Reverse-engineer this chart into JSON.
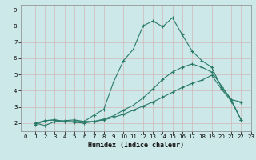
{
  "xlabel": "Humidex (Indice chaleur)",
  "ylabel": "",
  "background_color": "#cde8e8",
  "grid_color": "#b8d0d0",
  "line_color": "#2a7a6a",
  "xlim": [
    -0.5,
    23
  ],
  "ylim": [
    1.5,
    9.3
  ],
  "xticks": [
    0,
    1,
    2,
    3,
    4,
    5,
    6,
    7,
    8,
    9,
    10,
    11,
    12,
    13,
    14,
    15,
    16,
    17,
    18,
    19,
    20,
    21,
    22,
    23
  ],
  "yticks": [
    2,
    3,
    4,
    5,
    6,
    7,
    8,
    9
  ],
  "series2_x": [
    1,
    2,
    3,
    4,
    5,
    6,
    7,
    8,
    9,
    10,
    11,
    12,
    13,
    14,
    15,
    16,
    17,
    18,
    19,
    20,
    21,
    22
  ],
  "series2_y": [
    2.0,
    1.85,
    2.1,
    2.15,
    2.2,
    2.1,
    2.5,
    2.85,
    4.55,
    5.85,
    6.55,
    8.0,
    8.3,
    7.95,
    8.5,
    7.45,
    6.45,
    5.85,
    5.45,
    4.2,
    3.45,
    2.2
  ],
  "series1_x": [
    1,
    2,
    3,
    4,
    5,
    6,
    7,
    8,
    9,
    10,
    11,
    12,
    13,
    14,
    15,
    16,
    17,
    18,
    19,
    20,
    21,
    22
  ],
  "series1_y": [
    2.0,
    2.15,
    2.2,
    2.1,
    2.05,
    2.0,
    2.1,
    2.25,
    2.45,
    2.8,
    3.1,
    3.55,
    4.1,
    4.7,
    5.15,
    5.45,
    5.65,
    5.45,
    5.15,
    4.3,
    3.45,
    3.3
  ],
  "series3_x": [
    1,
    2,
    3,
    4,
    5,
    6,
    7,
    8,
    9,
    10,
    11,
    12,
    13,
    14,
    15,
    16,
    17,
    18,
    19,
    20,
    21,
    22
  ],
  "series3_y": [
    1.9,
    2.15,
    2.2,
    2.1,
    2.1,
    2.1,
    2.1,
    2.2,
    2.35,
    2.55,
    2.8,
    3.05,
    3.3,
    3.6,
    3.9,
    4.2,
    4.45,
    4.65,
    4.95,
    4.1,
    3.35,
    2.2
  ]
}
